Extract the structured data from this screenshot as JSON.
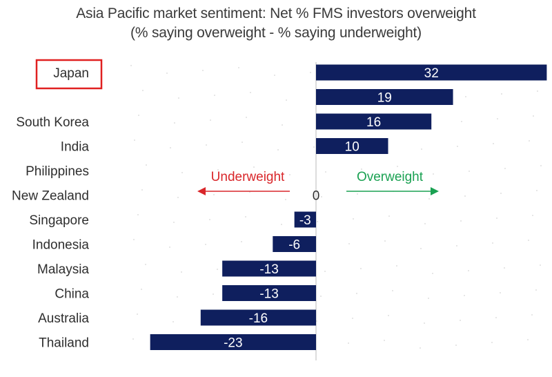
{
  "chart_data": {
    "type": "bar",
    "orientation": "horizontal",
    "title": "Asia Pacific market sentiment: Net % FMS investors overweight",
    "subtitle": "(% saying overweight - % saying underweight)",
    "categories": [
      "Japan",
      "",
      "South Korea",
      "India",
      "Philippines",
      "New Zealand",
      "Singapore",
      "Indonesia",
      "Malaysia",
      "China",
      "Australia",
      "Thailand"
    ],
    "values": [
      32,
      19,
      16,
      10,
      null,
      0,
      -3,
      -6,
      -13,
      -13,
      -16,
      -23
    ],
    "zero_label": "0",
    "xlim": [
      -23,
      32
    ],
    "bar_color": "#0f1f5e",
    "highlighted_category": "Japan",
    "highlight_color": "#e02020",
    "annotations": {
      "underweight": {
        "text": "Underweight",
        "color": "#d9262a",
        "direction": "left"
      },
      "overweight": {
        "text": "Overweight",
        "color": "#1aa152",
        "direction": "right"
      }
    }
  }
}
